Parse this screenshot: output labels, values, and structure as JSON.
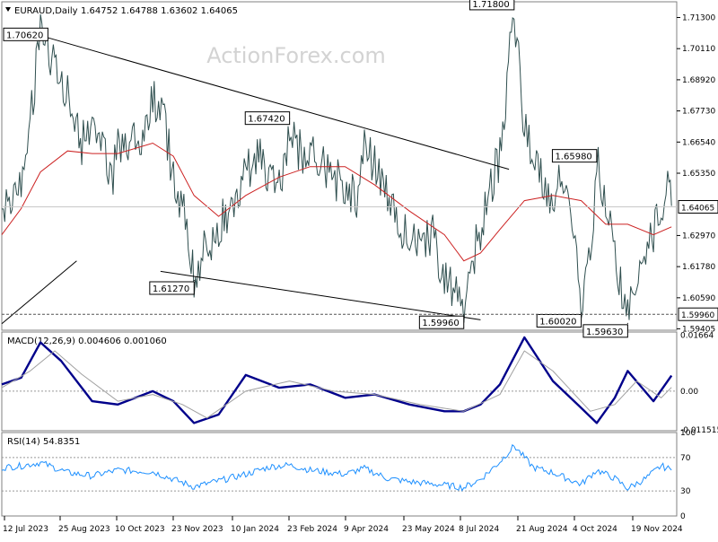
{
  "chart_data": {
    "type": "line",
    "symbol": "EURAUD,Daily",
    "ohlc_header": "1.64752 1.64788 1.63602 1.64065",
    "watermark": "ActionForex.com",
    "colors": {
      "price": "#2f4f4f",
      "ma": "#cc2222",
      "trendline": "#000000",
      "macd": "#00008b",
      "signal": "#a0a0a0",
      "rsi": "#1e90ff",
      "border": "#808080",
      "grid": "#b4b4b4"
    },
    "x_ticks": [
      "12 Jul 2023",
      "25 Aug 2023",
      "10 Oct 2023",
      "23 Nov 2023",
      "10 Jan 2024",
      "23 Feb 2024",
      "9 Apr 2024",
      "23 May 2024",
      "8 Jul 2024",
      "21 Aug 2024",
      "4 Oct 2024",
      "19 Nov 2024"
    ],
    "main": {
      "ylim": [
        1.5935,
        1.719
      ],
      "y_ticks": [
        "1.71300",
        "1.70110",
        "1.68920",
        "1.67730",
        "1.66540",
        "1.65350",
        "1.62970",
        "1.61780",
        "1.60590",
        "1.59405"
      ],
      "last_price_label": "1.64065",
      "support_label": "1.59960",
      "annotations": [
        {
          "label": "1.70620",
          "value": 1.7062,
          "date": "2023-08-04"
        },
        {
          "label": "1.71800",
          "value": 1.718,
          "date": "2024-08-05"
        },
        {
          "label": "1.67420",
          "value": 1.6742,
          "date": "2024-02-13"
        },
        {
          "label": "1.61270",
          "value": 1.6127,
          "date": "2023-12-01"
        },
        {
          "label": "1.59960",
          "value": 1.5996,
          "date": "2024-06-27"
        },
        {
          "label": "1.65980",
          "value": 1.6598,
          "date": "2024-10-08"
        },
        {
          "label": "1.60020",
          "value": 1.6002,
          "date": "2024-09-26"
        },
        {
          "label": "1.59630",
          "value": 1.5963,
          "date": "2024-11-01"
        }
      ],
      "price_series": [
        {
          "date": "2023-07-05",
          "value": 1.64
        },
        {
          "date": "2023-07-20",
          "value": 1.652
        },
        {
          "date": "2023-07-27",
          "value": 1.675
        },
        {
          "date": "2023-08-04",
          "value": 1.706
        },
        {
          "date": "2023-08-15",
          "value": 1.697
        },
        {
          "date": "2023-08-25",
          "value": 1.684
        },
        {
          "date": "2023-09-05",
          "value": 1.664
        },
        {
          "date": "2023-09-13",
          "value": 1.676
        },
        {
          "date": "2023-09-22",
          "value": 1.663
        },
        {
          "date": "2023-09-28",
          "value": 1.648
        },
        {
          "date": "2023-10-03",
          "value": 1.668
        },
        {
          "date": "2023-10-12",
          "value": 1.661
        },
        {
          "date": "2023-10-20",
          "value": 1.668
        },
        {
          "date": "2023-10-30",
          "value": 1.681
        },
        {
          "date": "2023-11-08",
          "value": 1.674
        },
        {
          "date": "2023-11-15",
          "value": 1.652
        },
        {
          "date": "2023-11-22",
          "value": 1.641
        },
        {
          "date": "2023-12-01",
          "value": 1.615
        },
        {
          "date": "2023-12-11",
          "value": 1.625
        },
        {
          "date": "2023-12-20",
          "value": 1.633
        },
        {
          "date": "2024-01-02",
          "value": 1.645
        },
        {
          "date": "2024-01-10",
          "value": 1.653
        },
        {
          "date": "2024-01-19",
          "value": 1.659
        },
        {
          "date": "2024-01-29",
          "value": 1.654
        },
        {
          "date": "2024-02-05",
          "value": 1.648
        },
        {
          "date": "2024-02-13",
          "value": 1.672
        },
        {
          "date": "2024-02-21",
          "value": 1.662
        },
        {
          "date": "2024-02-29",
          "value": 1.661
        },
        {
          "date": "2024-03-08",
          "value": 1.658
        },
        {
          "date": "2024-03-18",
          "value": 1.652
        },
        {
          "date": "2024-03-27",
          "value": 1.649
        },
        {
          "date": "2024-04-05",
          "value": 1.645
        },
        {
          "date": "2024-04-11",
          "value": 1.666
        },
        {
          "date": "2024-04-19",
          "value": 1.656
        },
        {
          "date": "2024-04-29",
          "value": 1.643
        },
        {
          "date": "2024-05-08",
          "value": 1.633
        },
        {
          "date": "2024-05-16",
          "value": 1.627
        },
        {
          "date": "2024-05-24",
          "value": 1.628
        },
        {
          "date": "2024-06-03",
          "value": 1.63
        },
        {
          "date": "2024-06-12",
          "value": 1.612
        },
        {
          "date": "2024-06-20",
          "value": 1.607
        },
        {
          "date": "2024-06-27",
          "value": 1.601
        },
        {
          "date": "2024-07-03",
          "value": 1.617
        },
        {
          "date": "2024-07-10",
          "value": 1.633
        },
        {
          "date": "2024-07-18",
          "value": 1.647
        },
        {
          "date": "2024-07-25",
          "value": 1.661
        },
        {
          "date": "2024-08-05",
          "value": 1.716
        },
        {
          "date": "2024-08-13",
          "value": 1.672
        },
        {
          "date": "2024-08-20",
          "value": 1.656
        },
        {
          "date": "2024-08-28",
          "value": 1.65
        },
        {
          "date": "2024-09-04",
          "value": 1.643
        },
        {
          "date": "2024-09-11",
          "value": 1.653
        },
        {
          "date": "2024-09-19",
          "value": 1.633
        },
        {
          "date": "2024-09-26",
          "value": 1.603
        },
        {
          "date": "2024-10-03",
          "value": 1.621
        },
        {
          "date": "2024-10-08",
          "value": 1.658
        },
        {
          "date": "2024-10-15",
          "value": 1.637
        },
        {
          "date": "2024-10-22",
          "value": 1.624
        },
        {
          "date": "2024-11-01",
          "value": 1.598
        },
        {
          "date": "2024-11-08",
          "value": 1.615
        },
        {
          "date": "2024-11-15",
          "value": 1.626
        },
        {
          "date": "2024-11-21",
          "value": 1.628
        },
        {
          "date": "2024-11-27",
          "value": 1.641
        },
        {
          "date": "2024-12-02",
          "value": 1.652
        },
        {
          "date": "2024-12-05",
          "value": 1.641
        }
      ],
      "ma_series": [
        {
          "date": "2023-07-05",
          "value": 1.63
        },
        {
          "date": "2023-07-20",
          "value": 1.64
        },
        {
          "date": "2023-08-04",
          "value": 1.654
        },
        {
          "date": "2023-08-25",
          "value": 1.662
        },
        {
          "date": "2023-09-13",
          "value": 1.661
        },
        {
          "date": "2023-10-03",
          "value": 1.661
        },
        {
          "date": "2023-10-30",
          "value": 1.665
        },
        {
          "date": "2023-11-15",
          "value": 1.66
        },
        {
          "date": "2023-12-01",
          "value": 1.645
        },
        {
          "date": "2023-12-20",
          "value": 1.637
        },
        {
          "date": "2024-01-10",
          "value": 1.645
        },
        {
          "date": "2024-02-05",
          "value": 1.652
        },
        {
          "date": "2024-02-29",
          "value": 1.656
        },
        {
          "date": "2024-03-27",
          "value": 1.656
        },
        {
          "date": "2024-04-19",
          "value": 1.649
        },
        {
          "date": "2024-05-16",
          "value": 1.639
        },
        {
          "date": "2024-06-12",
          "value": 1.63
        },
        {
          "date": "2024-06-27",
          "value": 1.62
        },
        {
          "date": "2024-07-10",
          "value": 1.623
        },
        {
          "date": "2024-07-25",
          "value": 1.632
        },
        {
          "date": "2024-08-13",
          "value": 1.643
        },
        {
          "date": "2024-09-04",
          "value": 1.645
        },
        {
          "date": "2024-09-26",
          "value": 1.643
        },
        {
          "date": "2024-10-15",
          "value": 1.634
        },
        {
          "date": "2024-11-01",
          "value": 1.634
        },
        {
          "date": "2024-11-21",
          "value": 1.63
        },
        {
          "date": "2024-12-05",
          "value": 1.633
        }
      ],
      "trendlines": [
        {
          "from": {
            "date": "2023-08-01",
            "value": 1.7065
          },
          "to": {
            "date": "2024-08-01",
            "value": 1.655
          }
        },
        {
          "from": {
            "date": "2023-11-05",
            "value": 1.616
          },
          "to": {
            "date": "2024-07-10",
            "value": 1.5975
          }
        },
        {
          "from": {
            "date": "2023-07-05",
            "value": 1.596
          },
          "to": {
            "date": "2023-09-01",
            "value": 1.62
          }
        }
      ]
    },
    "macd": {
      "label": "MACD(12,26,9) 0.004606 0.001060",
      "ylim": [
        -0.0118,
        0.0176
      ],
      "y_ticks": [
        "0.01664",
        "0.00",
        "-0.011515"
      ],
      "series": [
        {
          "name": "MACD",
          "values": [
            {
              "date": "2023-07-05",
              "value": 0.002
            },
            {
              "date": "2023-07-20",
              "value": 0.004
            },
            {
              "date": "2023-08-04",
              "value": 0.0145
            },
            {
              "date": "2023-08-20",
              "value": 0.009
            },
            {
              "date": "2023-09-13",
              "value": -0.003
            },
            {
              "date": "2023-10-03",
              "value": -0.004
            },
            {
              "date": "2023-10-30",
              "value": 0.0
            },
            {
              "date": "2023-11-15",
              "value": -0.003
            },
            {
              "date": "2023-12-01",
              "value": -0.0095
            },
            {
              "date": "2023-12-20",
              "value": -0.007
            },
            {
              "date": "2024-01-10",
              "value": 0.0048
            },
            {
              "date": "2024-02-05",
              "value": 0.001
            },
            {
              "date": "2024-02-29",
              "value": 0.002
            },
            {
              "date": "2024-03-27",
              "value": -0.002
            },
            {
              "date": "2024-04-19",
              "value": -0.001
            },
            {
              "date": "2024-05-16",
              "value": -0.004
            },
            {
              "date": "2024-06-12",
              "value": -0.006
            },
            {
              "date": "2024-06-27",
              "value": -0.006
            },
            {
              "date": "2024-07-10",
              "value": -0.004
            },
            {
              "date": "2024-07-25",
              "value": 0.002
            },
            {
              "date": "2024-08-13",
              "value": 0.016
            },
            {
              "date": "2024-09-04",
              "value": 0.003
            },
            {
              "date": "2024-09-26",
              "value": -0.005
            },
            {
              "date": "2024-10-08",
              "value": -0.0095
            },
            {
              "date": "2024-10-22",
              "value": -0.002
            },
            {
              "date": "2024-11-01",
              "value": 0.006
            },
            {
              "date": "2024-11-21",
              "value": -0.003
            },
            {
              "date": "2024-12-05",
              "value": 0.0046
            }
          ]
        },
        {
          "name": "Signal",
          "values": [
            {
              "date": "2023-07-05",
              "value": 0.001
            },
            {
              "date": "2023-07-27",
              "value": 0.006
            },
            {
              "date": "2023-08-15",
              "value": 0.012
            },
            {
              "date": "2023-09-05",
              "value": 0.005
            },
            {
              "date": "2023-10-03",
              "value": -0.003
            },
            {
              "date": "2023-10-30",
              "value": -0.001
            },
            {
              "date": "2023-11-22",
              "value": -0.004
            },
            {
              "date": "2023-12-11",
              "value": -0.008
            },
            {
              "date": "2024-01-10",
              "value": 0.0
            },
            {
              "date": "2024-02-13",
              "value": 0.003
            },
            {
              "date": "2024-03-18",
              "value": 0.0
            },
            {
              "date": "2024-04-19",
              "value": -0.001
            },
            {
              "date": "2024-05-24",
              "value": -0.004
            },
            {
              "date": "2024-06-27",
              "value": -0.006
            },
            {
              "date": "2024-07-25",
              "value": -0.001
            },
            {
              "date": "2024-08-13",
              "value": 0.012
            },
            {
              "date": "2024-09-04",
              "value": 0.006
            },
            {
              "date": "2024-10-03",
              "value": -0.006
            },
            {
              "date": "2024-10-22",
              "value": -0.004
            },
            {
              "date": "2024-11-08",
              "value": 0.003
            },
            {
              "date": "2024-11-27",
              "value": -0.002
            },
            {
              "date": "2024-12-05",
              "value": 0.0011
            }
          ]
        }
      ]
    },
    "rsi": {
      "label": "RSI(14) 54.8351",
      "ylim": [
        0,
        100
      ],
      "y_ticks": [
        "100",
        "70",
        "30",
        "0"
      ],
      "values": [
        {
          "date": "2023-07-05",
          "value": 58
        },
        {
          "date": "2023-07-20",
          "value": 60
        },
        {
          "date": "2023-08-04",
          "value": 64
        },
        {
          "date": "2023-08-25",
          "value": 52
        },
        {
          "date": "2023-09-13",
          "value": 48
        },
        {
          "date": "2023-10-03",
          "value": 55
        },
        {
          "date": "2023-10-30",
          "value": 53
        },
        {
          "date": "2023-11-15",
          "value": 44
        },
        {
          "date": "2023-12-01",
          "value": 35
        },
        {
          "date": "2023-12-20",
          "value": 42
        },
        {
          "date": "2024-01-10",
          "value": 50
        },
        {
          "date": "2024-01-29",
          "value": 59
        },
        {
          "date": "2024-02-13",
          "value": 61
        },
        {
          "date": "2024-02-29",
          "value": 55
        },
        {
          "date": "2024-03-27",
          "value": 50
        },
        {
          "date": "2024-04-11",
          "value": 57
        },
        {
          "date": "2024-04-29",
          "value": 45
        },
        {
          "date": "2024-05-16",
          "value": 41
        },
        {
          "date": "2024-06-12",
          "value": 37
        },
        {
          "date": "2024-06-27",
          "value": 34
        },
        {
          "date": "2024-07-10",
          "value": 44
        },
        {
          "date": "2024-07-25",
          "value": 65
        },
        {
          "date": "2024-08-05",
          "value": 84
        },
        {
          "date": "2024-08-20",
          "value": 58
        },
        {
          "date": "2024-09-04",
          "value": 52
        },
        {
          "date": "2024-09-26",
          "value": 38
        },
        {
          "date": "2024-10-08",
          "value": 55
        },
        {
          "date": "2024-10-22",
          "value": 45
        },
        {
          "date": "2024-11-01",
          "value": 33
        },
        {
          "date": "2024-11-15",
          "value": 45
        },
        {
          "date": "2024-11-27",
          "value": 60
        },
        {
          "date": "2024-12-05",
          "value": 55
        }
      ]
    }
  }
}
